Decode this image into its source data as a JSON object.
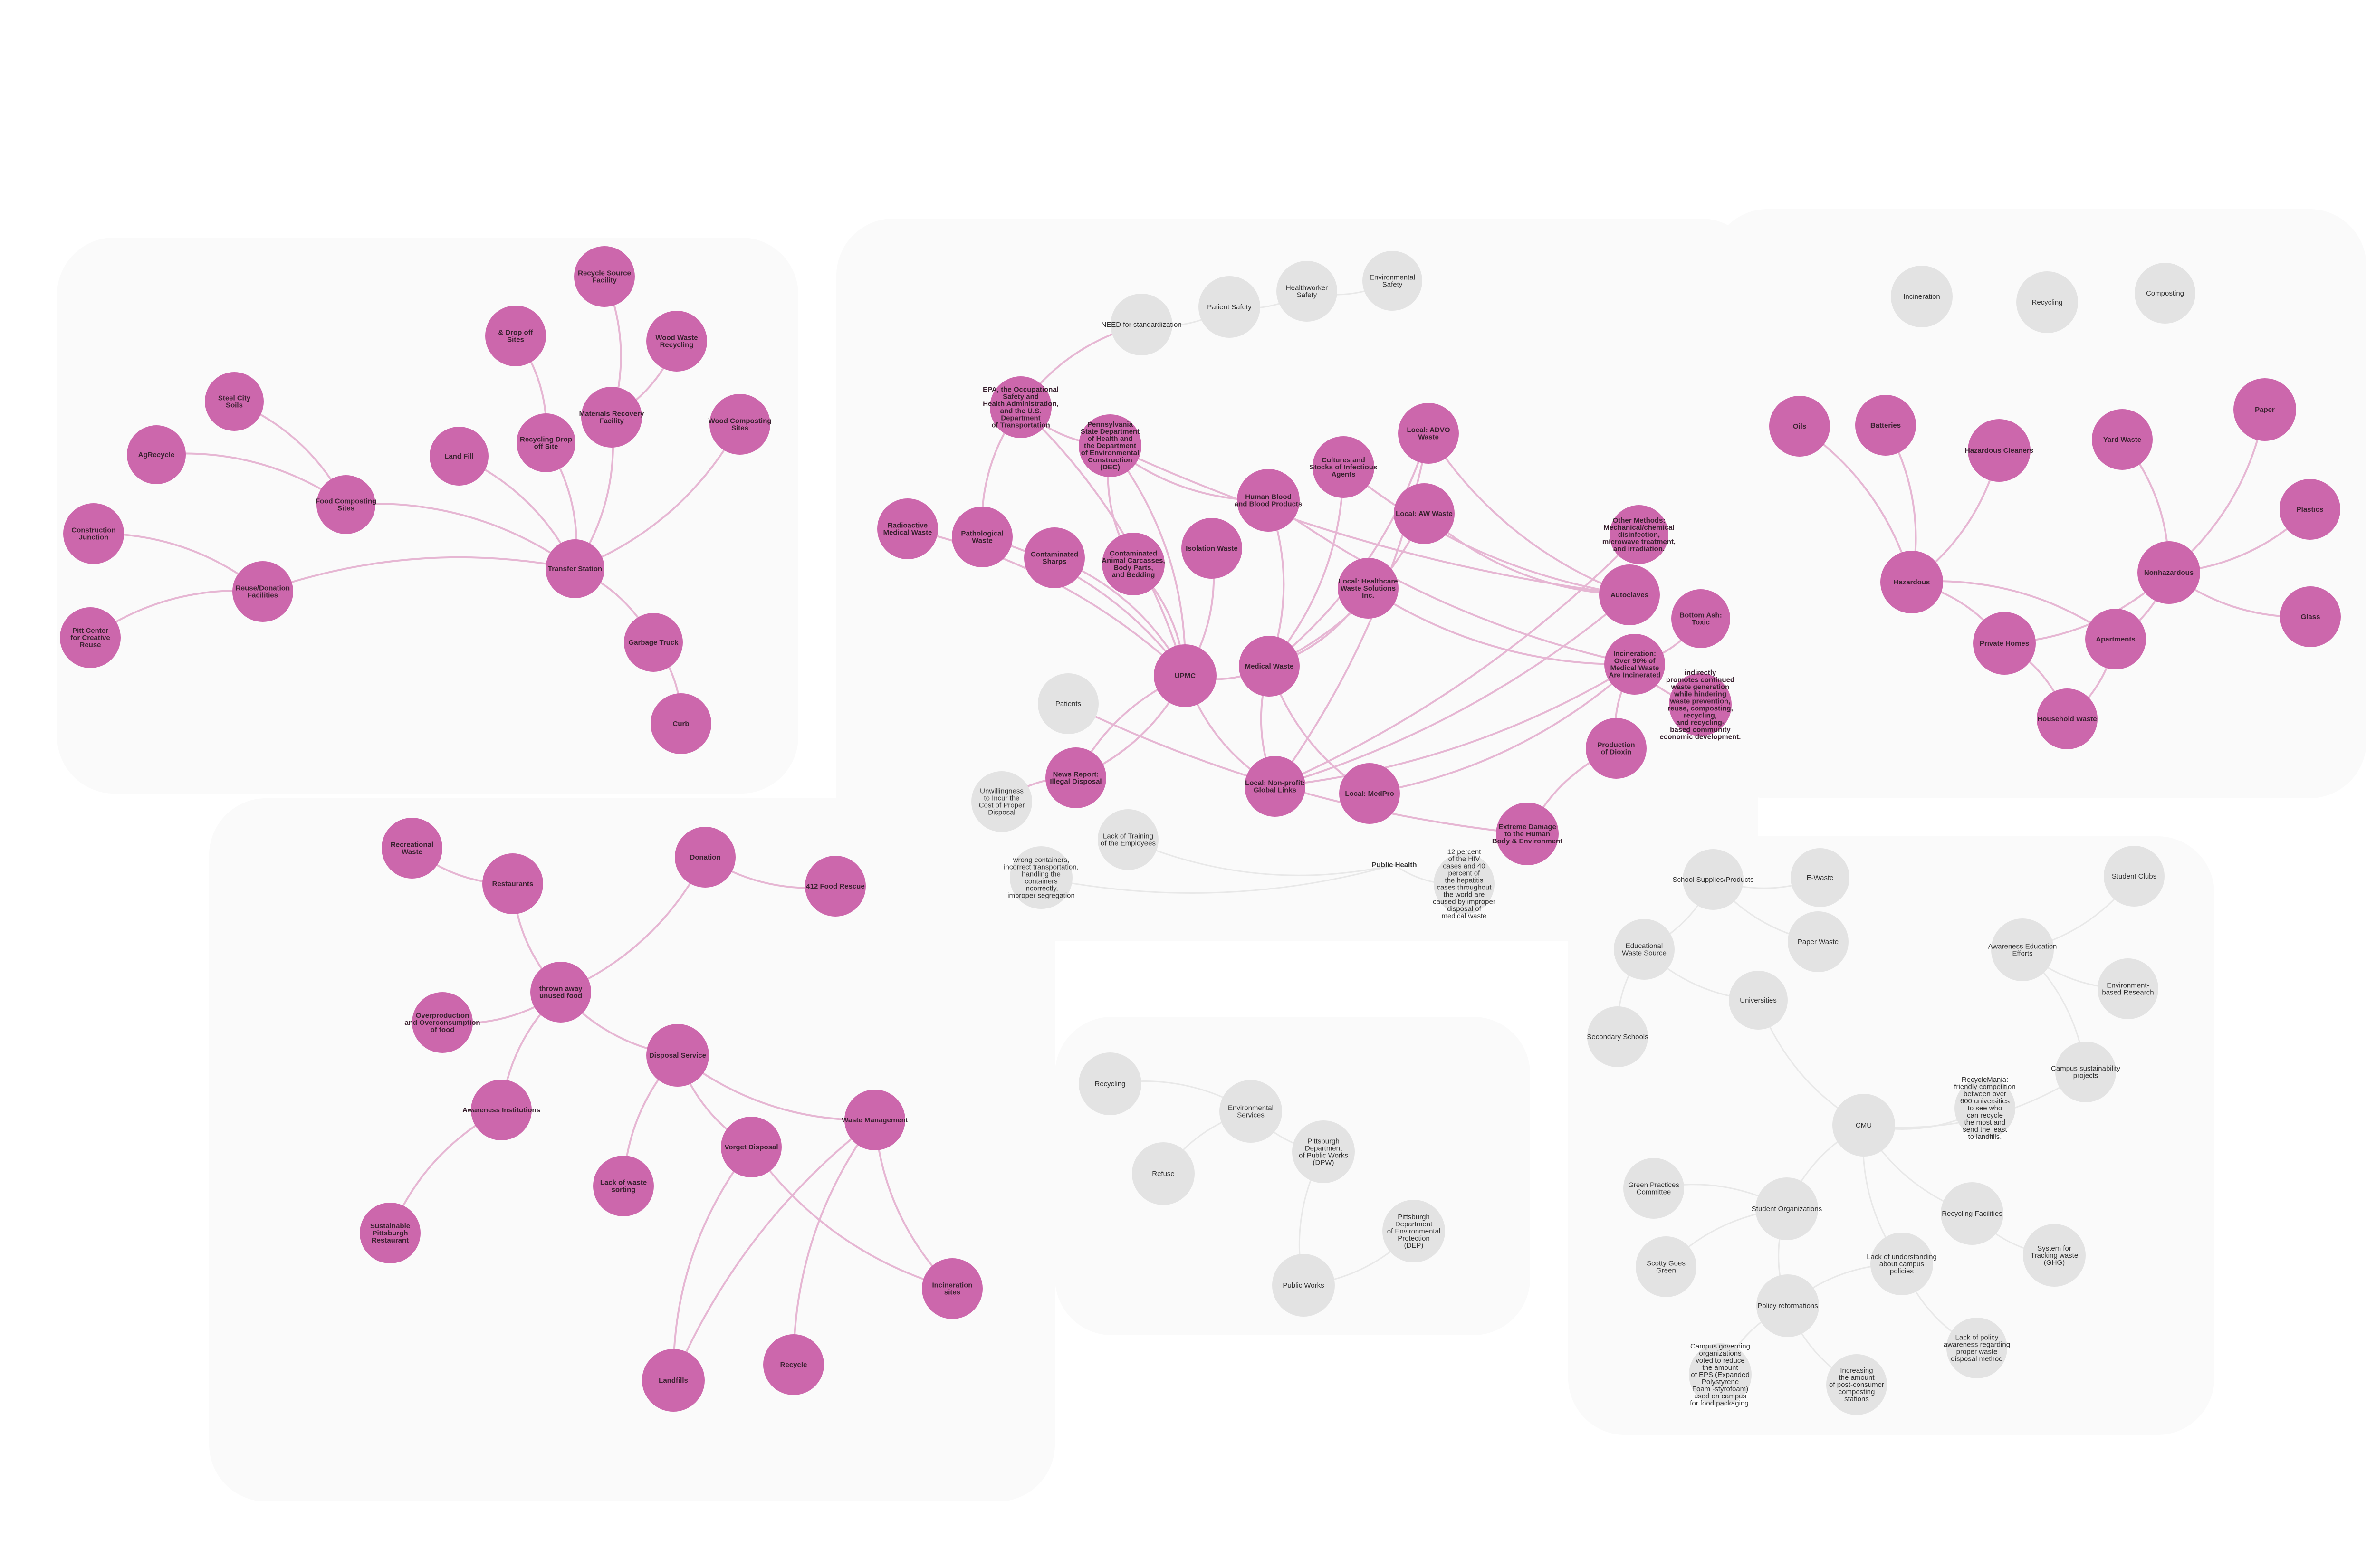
{
  "colors": {
    "pink_node": "#cc67ac",
    "grey_node": "#e3e3e3",
    "pink_edge": "#e6b6d3",
    "grey_edge": "#e8e8e8",
    "panel": "#fafafa"
  },
  "nodes": {
    "sw1": {
      "text": "Steel City\nSoils",
      "kind": "pink"
    },
    "sw2": {
      "text": "AgRecycle",
      "kind": "pink"
    },
    "sw3": {
      "text": "Construction\nJunction",
      "kind": "pink"
    },
    "sw4": {
      "text": "Pitt Center\nfor Creative\nReuse",
      "kind": "pink"
    },
    "sw5": {
      "text": "Reuse/Donation\nFacilities",
      "kind": "pink"
    },
    "sw6": {
      "text": "Food Composting\nSites",
      "kind": "pink"
    },
    "sw7": {
      "text": "Land Fill",
      "kind": "pink"
    },
    "sw8": {
      "text": "& Drop off\nSites",
      "kind": "pink"
    },
    "sw9": {
      "text": "Recycle Source\nFacility",
      "kind": "pink"
    },
    "sw10": {
      "text": "Recycling Drop\noff Site",
      "kind": "pink"
    },
    "sw11": {
      "text": "Materials Recovery\nFacility",
      "kind": "pink"
    },
    "sw12": {
      "text": "Wood Waste\nRecycling",
      "kind": "pink"
    },
    "sw13": {
      "text": "Wood Composting\nSites",
      "kind": "pink"
    },
    "sw14": {
      "text": "Transfer Station",
      "kind": "pink"
    },
    "sw15": {
      "text": "Garbage Truck",
      "kind": "pink"
    },
    "sw16": {
      "text": "Curb",
      "kind": "pink"
    },
    "md1": {
      "text": "NEED for standardization",
      "kind": "grey"
    },
    "md2": {
      "text": "Patient Safety",
      "kind": "grey"
    },
    "md3": {
      "text": "Healthworker\nSafety",
      "kind": "grey"
    },
    "md4": {
      "text": "Environmental\nSafety",
      "kind": "grey"
    },
    "md5": {
      "text": "EPA, the Occupational\nSafety and\nHealth Administration,\nand the U.S.\nDepartment\nof Transportation",
      "kind": "pink"
    },
    "md6": {
      "text": "Pennsylvania\nState Department\nof Health and\nthe Department\nof Environmental\nConstruction\n(DEC)",
      "kind": "pink"
    },
    "md7": {
      "text": "Radioactive\nMedical Waste",
      "kind": "pink"
    },
    "md8": {
      "text": "Pathological\nWaste",
      "kind": "pink"
    },
    "md9": {
      "text": "Contaminated\nSharps",
      "kind": "pink"
    },
    "md10": {
      "text": "Contaminated\nAnimal Carcasses,\nBody Parts,\nand Bedding",
      "kind": "pink"
    },
    "md11": {
      "text": "Isolation Waste",
      "kind": "pink"
    },
    "md12": {
      "text": "Human Blood\nand Blood Products",
      "kind": "pink"
    },
    "md13": {
      "text": "Cultures and\nStocks of Infectious\nAgents",
      "kind": "pink"
    },
    "md14": {
      "text": "Local: ADVO\nWaste",
      "kind": "pink"
    },
    "md15": {
      "text": "Local: AW Waste",
      "kind": "pink"
    },
    "md16": {
      "text": "Local: Healthcare\nWaste Solutions\nInc.",
      "kind": "pink"
    },
    "md17": {
      "text": "Other Methods:\nMechanical/chemical\ndisinfection,\nmicrowave treatment,\nand irradiation.",
      "kind": "pink"
    },
    "md18": {
      "text": "Autoclaves",
      "kind": "pink"
    },
    "md19": {
      "text": "Bottom Ash:\nToxic",
      "kind": "pink"
    },
    "md20": {
      "text": "Incineration:\nOver 90% of\nMedical Waste\nAre Incinerated",
      "kind": "pink"
    },
    "md21": {
      "text": "indirectly\npromotes continued\nwaste generation\nwhile hindering\nwaste prevention,\nreuse, composting,\nrecycling,\nand recycling-\nbased community\neconomic development.",
      "kind": "pink"
    },
    "md22": {
      "text": "Production\nof Dioxin",
      "kind": "pink"
    },
    "md23": {
      "text": "UPMC",
      "kind": "pink"
    },
    "md24": {
      "text": "Medical Waste",
      "kind": "pink"
    },
    "md25": {
      "text": "Patients",
      "kind": "grey"
    },
    "md26": {
      "text": "News Report:\nIllegal Disposal",
      "kind": "pink"
    },
    "md27": {
      "text": "Unwillingness\nto Incur the\nCost of Proper\nDisposal",
      "kind": "grey"
    },
    "md28": {
      "text": "Lack of Training\nof the Employees",
      "kind": "grey"
    },
    "md29": {
      "text": "wrong containers,\nincorrect transportation,\nhandling the\ncontainers\nincorrectly,\nimproper segregation",
      "kind": "grey"
    },
    "md30": {
      "text": "Local: Non-profit:\nGlobal Links",
      "kind": "pink"
    },
    "md31": {
      "text": "Local: MedPro",
      "kind": "pink"
    },
    "md32": {
      "text": "Extreme Damage\nto the Human\nBody & Environment",
      "kind": "pink"
    },
    "md33": {
      "text": "Public Health",
      "kind": "text"
    },
    "md34": {
      "text": "12 percent\nof the HIV\ncases and 40\npercent of\nthe hepatitis\ncases throughout\nthe world are\ncaused by improper\ndisposal of\nmedical waste",
      "kind": "grey"
    },
    "tr1": {
      "text": "Incineration",
      "kind": "grey"
    },
    "tr2": {
      "text": "Recycling",
      "kind": "grey"
    },
    "tr3": {
      "text": "Composting",
      "kind": "grey"
    },
    "hw1": {
      "text": "Oils",
      "kind": "pink"
    },
    "hw2": {
      "text": "Batteries",
      "kind": "pink"
    },
    "hw3": {
      "text": "Hazardous Cleaners",
      "kind": "pink"
    },
    "hw4": {
      "text": "Yard Waste",
      "kind": "pink"
    },
    "hw5": {
      "text": "Paper",
      "kind": "pink"
    },
    "hw6": {
      "text": "Plastics",
      "kind": "pink"
    },
    "hw7": {
      "text": "Glass",
      "kind": "pink"
    },
    "hw8": {
      "text": "Hazardous",
      "kind": "pink"
    },
    "hw9": {
      "text": "Nonhazardous",
      "kind": "pink"
    },
    "hw10": {
      "text": "Private Homes",
      "kind": "pink"
    },
    "hw11": {
      "text": "Apartments",
      "kind": "pink"
    },
    "hw12": {
      "text": "Household Waste",
      "kind": "pink"
    },
    "fw1": {
      "text": "Recreational\nWaste",
      "kind": "pink"
    },
    "fw2": {
      "text": "Restaurants",
      "kind": "pink"
    },
    "fw3": {
      "text": "Donation",
      "kind": "pink"
    },
    "fw4": {
      "text": "412 Food Rescue",
      "kind": "pink"
    },
    "fw5": {
      "text": "thrown away\nunused food",
      "kind": "pink"
    },
    "fw6": {
      "text": "Overproduction\nand Overconsumption\nof food",
      "kind": "pink"
    },
    "fw7": {
      "text": "Disposal Service",
      "kind": "pink"
    },
    "fw8": {
      "text": "Awareness Institutions",
      "kind": "pink"
    },
    "fw9": {
      "text": "Waste Management",
      "kind": "pink"
    },
    "fw10": {
      "text": "Vorget Disposal",
      "kind": "pink"
    },
    "fw11": {
      "text": "Lack of waste\nsorting",
      "kind": "pink"
    },
    "fw12": {
      "text": "Sustainable\nPittsburgh\nRestaurant",
      "kind": "pink"
    },
    "fw13": {
      "text": "Incineration\nsites",
      "kind": "pink"
    },
    "fw14": {
      "text": "Landfills",
      "kind": "pink"
    },
    "fw15": {
      "text": "Recycle",
      "kind": "pink"
    },
    "pw1": {
      "text": "Recycling",
      "kind": "grey"
    },
    "pw2": {
      "text": "Environmental\nServices",
      "kind": "grey"
    },
    "pw3": {
      "text": "Refuse",
      "kind": "grey"
    },
    "pw4": {
      "text": "Pittsburgh\nDepartment\nof Public Works\n(DPW)",
      "kind": "grey"
    },
    "pw5": {
      "text": "Pittsburgh\nDepartment\nof Environmental\nProtection\n(DEP)",
      "kind": "grey"
    },
    "pw6": {
      "text": "Public Works",
      "kind": "grey"
    },
    "cm1": {
      "text": "School Supplies/Products",
      "kind": "grey"
    },
    "cm2": {
      "text": "E-Waste",
      "kind": "grey"
    },
    "cm3": {
      "text": "Paper Waste",
      "kind": "grey"
    },
    "cm4": {
      "text": "Educational\nWaste Source",
      "kind": "grey"
    },
    "cm5": {
      "text": "Universities",
      "kind": "grey"
    },
    "cm6": {
      "text": "Secondary Schools",
      "kind": "grey"
    },
    "cm7": {
      "text": "Student Clubs",
      "kind": "grey"
    },
    "cm8": {
      "text": "Awareness Education\nEfforts",
      "kind": "grey"
    },
    "cm9": {
      "text": "Environment-\nbased Research",
      "kind": "grey"
    },
    "cm10": {
      "text": "Campus sustainability\nprojects",
      "kind": "grey"
    },
    "cm11": {
      "text": "RecycleMania:\nfriendly competition\nbetween over\n600 universities\nto see who\ncan recycle\nthe most and\nsend the least\nto landfills.",
      "kind": "grey"
    },
    "cm12": {
      "text": "CMU",
      "kind": "grey"
    },
    "cm13": {
      "text": "Green Practices\nCommittee",
      "kind": "grey"
    },
    "cm14": {
      "text": "Student Organizations",
      "kind": "grey"
    },
    "cm15": {
      "text": "Recycling Facilities",
      "kind": "grey"
    },
    "cm16": {
      "text": "Scotty Goes\nGreen",
      "kind": "grey"
    },
    "cm17": {
      "text": "Lack of understanding\nabout campus\npolicies",
      "kind": "grey"
    },
    "cm18": {
      "text": "System for\nTracking waste\n(GHG)",
      "kind": "grey"
    },
    "cm19": {
      "text": "Policy reformations",
      "kind": "grey"
    },
    "cm20": {
      "text": "Lack of policy\nawareness regarding\nproper waste\ndisposal method",
      "kind": "grey"
    },
    "cm21": {
      "text": "Campus governing\norganizations\nvoted to reduce\nthe amount\nof EPS (Expanded\nPolystyrene\nFoam -styrofoam)\nused on campus\nfor food packaging.",
      "kind": "grey"
    },
    "cm22": {
      "text": "Increasing\nthe amount\nof post-consumer\ncomposting\nstations",
      "kind": "grey"
    }
  },
  "edges": [
    [
      "sw14",
      "sw7"
    ],
    [
      "sw14",
      "sw10"
    ],
    [
      "sw14",
      "sw11"
    ],
    [
      "sw14",
      "sw13"
    ],
    [
      "sw14",
      "sw6"
    ],
    [
      "sw14",
      "sw5"
    ],
    [
      "sw15",
      "sw14"
    ],
    [
      "sw16",
      "sw15"
    ],
    [
      "sw10",
      "sw8"
    ],
    [
      "sw11",
      "sw9"
    ],
    [
      "sw11",
      "sw12"
    ],
    [
      "sw6",
      "sw1"
    ],
    [
      "sw6",
      "sw2"
    ],
    [
      "sw5",
      "sw3"
    ],
    [
      "sw5",
      "sw4"
    ],
    [
      "md1",
      "md2"
    ],
    [
      "md2",
      "md3"
    ],
    [
      "md3",
      "md4"
    ],
    [
      "md1",
      "md5"
    ],
    [
      "md23",
      "md7"
    ],
    [
      "md23",
      "md8"
    ],
    [
      "md23",
      "md9"
    ],
    [
      "md23",
      "md10"
    ],
    [
      "md23",
      "md11"
    ],
    [
      "md23",
      "md6"
    ],
    [
      "md23",
      "md5"
    ],
    [
      "md24",
      "md12"
    ],
    [
      "md24",
      "md13"
    ],
    [
      "md24",
      "md14"
    ],
    [
      "md24",
      "md15"
    ],
    [
      "md24",
      "md16"
    ],
    [
      "md23",
      "md24"
    ],
    [
      "md6",
      "md10"
    ],
    [
      "md6",
      "md12"
    ],
    [
      "md6",
      "md18"
    ],
    [
      "md5",
      "md8"
    ],
    [
      "md5",
      "md6"
    ],
    [
      "md14",
      "md18"
    ],
    [
      "md15",
      "md18"
    ],
    [
      "md16",
      "md20"
    ],
    [
      "md13",
      "md18"
    ],
    [
      "md12",
      "md20"
    ],
    [
      "md30",
      "md18"
    ],
    [
      "md30",
      "md20"
    ],
    [
      "md30",
      "md17"
    ],
    [
      "md30",
      "md14"
    ],
    [
      "md31",
      "md20"
    ],
    [
      "md24",
      "md30"
    ],
    [
      "md24",
      "md31"
    ],
    [
      "md20",
      "md19"
    ],
    [
      "md20",
      "md21"
    ],
    [
      "md20",
      "md22"
    ],
    [
      "md22",
      "md32"
    ],
    [
      "md23",
      "md30"
    ],
    [
      "md26",
      "md23"
    ],
    [
      "md26",
      "md27"
    ],
    [
      "md25",
      "md32"
    ],
    [
      "md28",
      "md33"
    ],
    [
      "md29",
      "md33"
    ],
    [
      "md33",
      "md34"
    ],
    [
      "md23",
      "md26"
    ],
    [
      "hw8",
      "hw1"
    ],
    [
      "hw8",
      "hw2"
    ],
    [
      "hw8",
      "hw3"
    ],
    [
      "hw9",
      "hw4"
    ],
    [
      "hw9",
      "hw5"
    ],
    [
      "hw9",
      "hw6"
    ],
    [
      "hw9",
      "hw7"
    ],
    [
      "hw10",
      "hw8"
    ],
    [
      "hw10",
      "hw9"
    ],
    [
      "hw11",
      "hw9"
    ],
    [
      "hw12",
      "hw10"
    ],
    [
      "hw12",
      "hw11"
    ],
    [
      "hw11",
      "hw8"
    ],
    [
      "fw1",
      "fw2"
    ],
    [
      "fw2",
      "fw5"
    ],
    [
      "fw5",
      "fw3"
    ],
    [
      "fw3",
      "fw4"
    ],
    [
      "fw6",
      "fw5"
    ],
    [
      "fw5",
      "fw7"
    ],
    [
      "fw5",
      "fw8"
    ],
    [
      "fw7",
      "fw9"
    ],
    [
      "fw7",
      "fw10"
    ],
    [
      "fw7",
      "fw11"
    ],
    [
      "fw8",
      "fw12"
    ],
    [
      "fw9",
      "fw13"
    ],
    [
      "fw9",
      "fw14"
    ],
    [
      "fw9",
      "fw15"
    ],
    [
      "fw10",
      "fw13"
    ],
    [
      "fw10",
      "fw14"
    ],
    [
      "pw2",
      "pw1"
    ],
    [
      "pw2",
      "pw3"
    ],
    [
      "pw2",
      "pw4"
    ],
    [
      "pw4",
      "pw6"
    ],
    [
      "pw6",
      "pw5"
    ],
    [
      "cm4",
      "cm1"
    ],
    [
      "cm1",
      "cm2"
    ],
    [
      "cm1",
      "cm3"
    ],
    [
      "cm4",
      "cm5"
    ],
    [
      "cm4",
      "cm6"
    ],
    [
      "cm5",
      "cm12"
    ],
    [
      "cm12",
      "cm10"
    ],
    [
      "cm10",
      "cm8"
    ],
    [
      "cm8",
      "cm7"
    ],
    [
      "cm8",
      "cm9"
    ],
    [
      "cm12",
      "cm11"
    ],
    [
      "cm12",
      "cm14"
    ],
    [
      "cm14",
      "cm13"
    ],
    [
      "cm14",
      "cm16"
    ],
    [
      "cm14",
      "cm19"
    ],
    [
      "cm12",
      "cm15"
    ],
    [
      "cm15",
      "cm18"
    ],
    [
      "cm12",
      "cm17"
    ],
    [
      "cm17",
      "cm20"
    ],
    [
      "cm17",
      "cm19"
    ],
    [
      "cm19",
      "cm21"
    ],
    [
      "cm19",
      "cm22"
    ]
  ]
}
